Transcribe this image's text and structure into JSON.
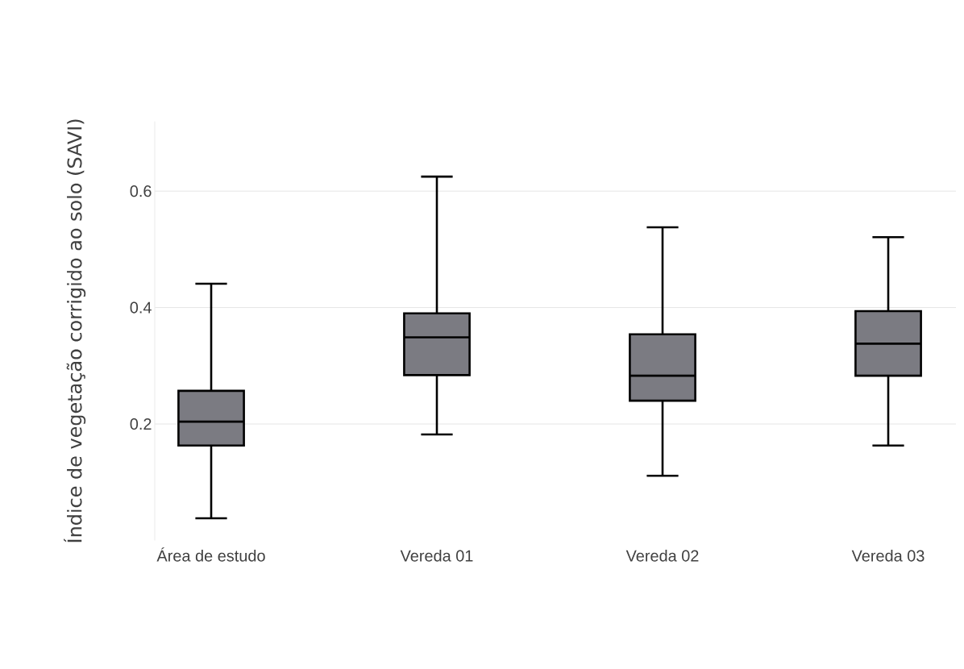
{
  "chart_data": {
    "type": "box",
    "ylabel": "Índice de vegetação corrigido ao solo (SAVI)",
    "categories": [
      "Área de estudo",
      "Vereda 01",
      "Vereda 02",
      "Vereda 03"
    ],
    "boxes": [
      {
        "low": 0.038,
        "q1": 0.163,
        "median": 0.204,
        "q3": 0.257,
        "high": 0.441
      },
      {
        "low": 0.182,
        "q1": 0.284,
        "median": 0.349,
        "q3": 0.39,
        "high": 0.625
      },
      {
        "low": 0.111,
        "q1": 0.24,
        "median": 0.283,
        "q3": 0.354,
        "high": 0.538
      },
      {
        "low": 0.163,
        "q1": 0.283,
        "median": 0.338,
        "q3": 0.394,
        "high": 0.521
      }
    ],
    "color": "#7b7b82",
    "ylim": [
      0,
      0.72
    ],
    "yticks": [
      0.2,
      0.4,
      0.6
    ],
    "grid": "y"
  }
}
